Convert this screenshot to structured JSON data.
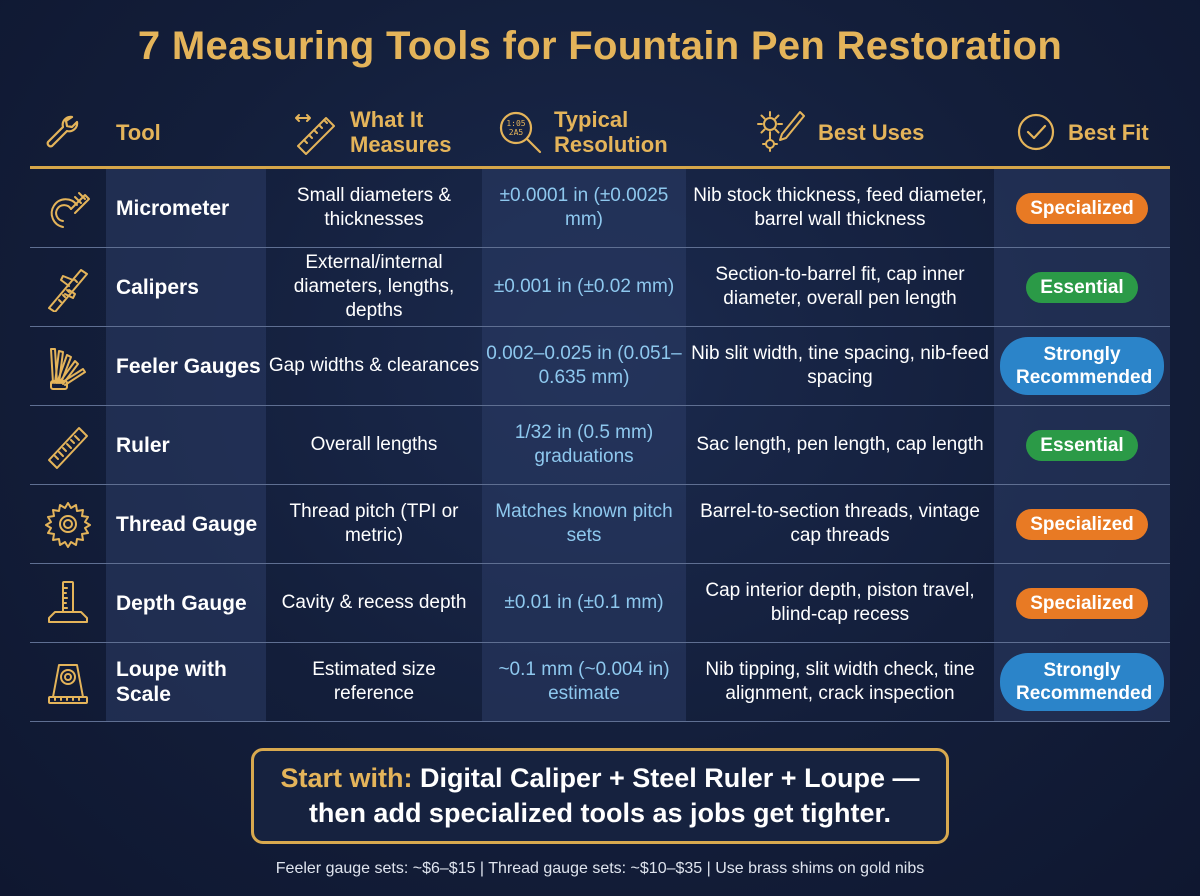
{
  "title": "7 Measuring Tools for Fountain Pen Restoration",
  "headers": {
    "tool": "Tool",
    "measures_l1": "What It",
    "measures_l2": "Measures",
    "resolution_l1": "Typical",
    "resolution_l2": "Resolution",
    "uses": "Best Uses",
    "fit": "Best Fit"
  },
  "rows": [
    {
      "tool": "Micrometer",
      "icon": "micrometer-icon",
      "measures": "Small diameters & thicknesses",
      "resolution": "±0.0001 in (±0.0025 mm)",
      "uses": "Nib stock thickness, feed diameter, barrel wall thickness",
      "fit": "Specialized"
    },
    {
      "tool": "Calipers",
      "icon": "calipers-icon",
      "measures": "External/internal diameters, lengths, depths",
      "resolution": "±0.001 in (±0.02 mm)",
      "uses": "Section-to-barrel fit, cap inner diameter, overall pen length",
      "fit": "Essential"
    },
    {
      "tool": "Feeler Gauges",
      "icon": "feeler-gauges-icon",
      "measures": "Gap widths & clearances",
      "resolution": "0.002–0.025 in (0.051–0.635 mm)",
      "uses": "Nib slit width, tine spacing, nib-feed spacing",
      "fit": "Strongly Recommended"
    },
    {
      "tool": "Ruler",
      "icon": "ruler-icon",
      "measures": "Overall lengths",
      "resolution": "1/32 in (0.5 mm) graduations",
      "uses": "Sac length, pen length, cap length",
      "fit": "Essential"
    },
    {
      "tool": "Thread Gauge",
      "icon": "thread-gauge-icon",
      "measures": "Thread pitch (TPI or metric)",
      "resolution": "Matches known pitch sets",
      "uses": "Barrel-to-section threads, vintage cap threads",
      "fit": "Specialized"
    },
    {
      "tool": "Depth Gauge",
      "icon": "depth-gauge-icon",
      "measures": "Cavity & recess depth",
      "resolution": "±0.01 in (±0.1 mm)",
      "uses": "Cap interior depth, piston travel, blind-cap recess",
      "fit": "Specialized"
    },
    {
      "tool": "Loupe with Scale",
      "icon": "loupe-icon",
      "measures": "Estimated size reference",
      "resolution": "~0.1 mm (~0.004 in) estimate",
      "uses": "Nib tipping, slit width check, tine alignment, crack inspection",
      "fit": "Strongly Recommended"
    }
  ],
  "callout": {
    "lead": "Start with:",
    "line1_rest": " Digital Caliper + Steel Ruler + Loupe —",
    "line2": "then add specialized tools as jobs get tighter."
  },
  "footer": "Feeler gauge sets: ~$6–$15 | Thread gauge sets: ~$10–$35 | Use brass shims on gold nibs",
  "colors": {
    "gold": "#e4b45a",
    "specialized": "#e87a24",
    "essential": "#2b9a47",
    "strongly_recommended": "#2b84c9",
    "resolution_text": "#8ec8ee"
  }
}
